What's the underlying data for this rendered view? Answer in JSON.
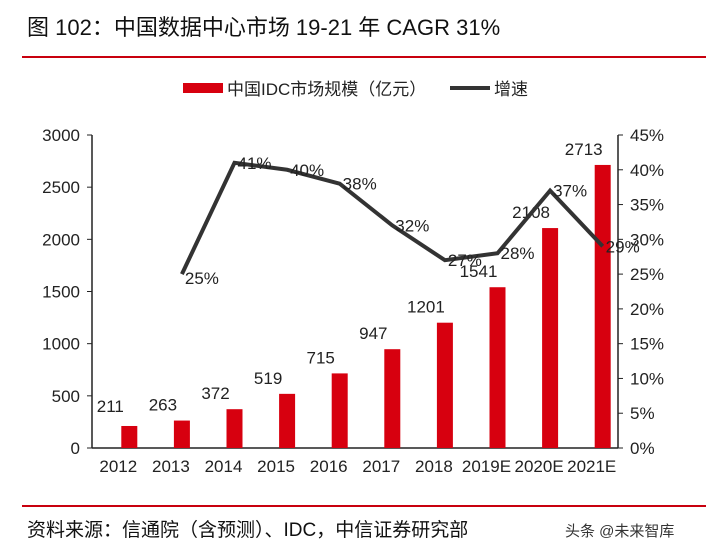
{
  "title": "图 102：中国数据中心市场 19-21 年 CAGR 31%",
  "source": "资料来源：信通院（含预测）、IDC，中信证券研究部",
  "watermark": "头条 @未来智库",
  "chart_data": {
    "type": "bar+line",
    "categories": [
      "2012",
      "2013",
      "2014",
      "2015",
      "2016",
      "2017",
      "2018",
      "2019E",
      "2020E",
      "2021E"
    ],
    "series": [
      {
        "name": "中国IDC市场规模（亿元）",
        "type": "bar",
        "axis": "left",
        "color": "#d7000f",
        "values": [
          211,
          263,
          372,
          519,
          715,
          947,
          1201,
          1541,
          2108,
          2713
        ]
      },
      {
        "name": "增速",
        "type": "line",
        "axis": "right",
        "color": "#333333",
        "values": [
          null,
          25,
          41,
          40,
          38,
          32,
          27,
          28,
          37,
          29
        ]
      }
    ],
    "left_axis": {
      "ylim": [
        0,
        3000
      ],
      "ticks": [
        "0",
        "500",
        "1000",
        "1500",
        "2000",
        "2500",
        "3000"
      ]
    },
    "right_axis": {
      "ylim": [
        0,
        45
      ],
      "ticks": [
        "0%",
        "5%",
        "10%",
        "15%",
        "20%",
        "25%",
        "30%",
        "35%",
        "40%",
        "45%"
      ]
    },
    "legend": "top-center",
    "grid": false
  }
}
